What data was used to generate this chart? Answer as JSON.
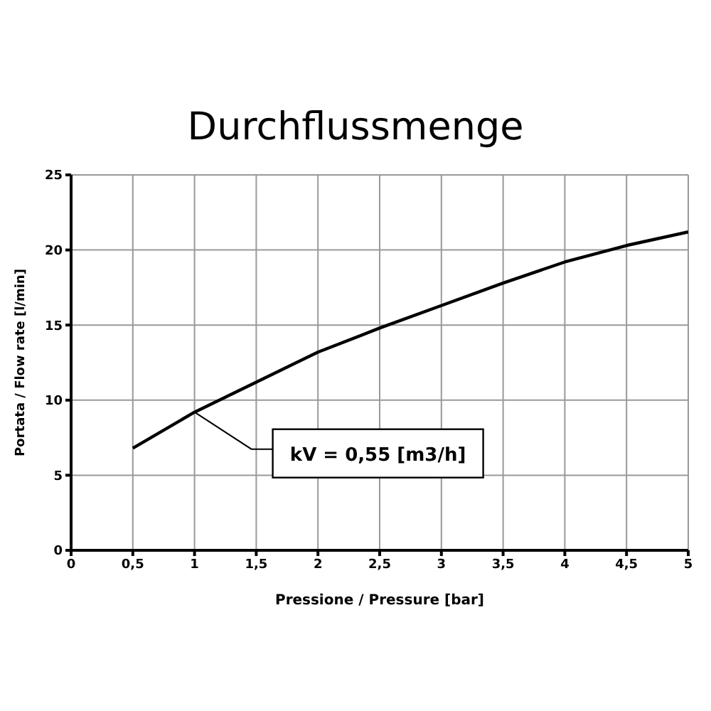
{
  "chart_data": {
    "type": "line",
    "title": "Durchflussmenge",
    "xlabel": "Pressione / Pressure [bar]",
    "ylabel": "Portata / Flow rate [l/min]",
    "x": [
      0.5,
      1,
      1.5,
      2,
      2.5,
      3,
      3.5,
      4,
      4.5,
      5
    ],
    "series": [
      {
        "color": "#000000",
        "values": [
          6.8,
          9.2,
          11.2,
          13.2,
          14.8,
          16.3,
          17.8,
          19.2,
          20.3,
          21.2
        ]
      }
    ],
    "xlim": [
      0,
      5
    ],
    "xticks": [
      0,
      {
        "value": 0.5,
        "label": "0,5"
      },
      1,
      {
        "value": 1.5,
        "label": "1,5"
      },
      2,
      {
        "value": 2.5,
        "label": "2,5"
      },
      3,
      {
        "value": 3.5,
        "label": "3,5"
      },
      4,
      {
        "value": 4.5,
        "label": "4,5"
      },
      5
    ],
    "ylim": [
      0,
      25
    ],
    "yticks": [
      0,
      5,
      10,
      15,
      20,
      25
    ],
    "grid": true,
    "marker": "none",
    "line_style": "solid",
    "annotations": [
      {
        "text": "kV = 0,55 [m3/h]",
        "x": 1,
        "y": 9.2
      }
    ]
  }
}
